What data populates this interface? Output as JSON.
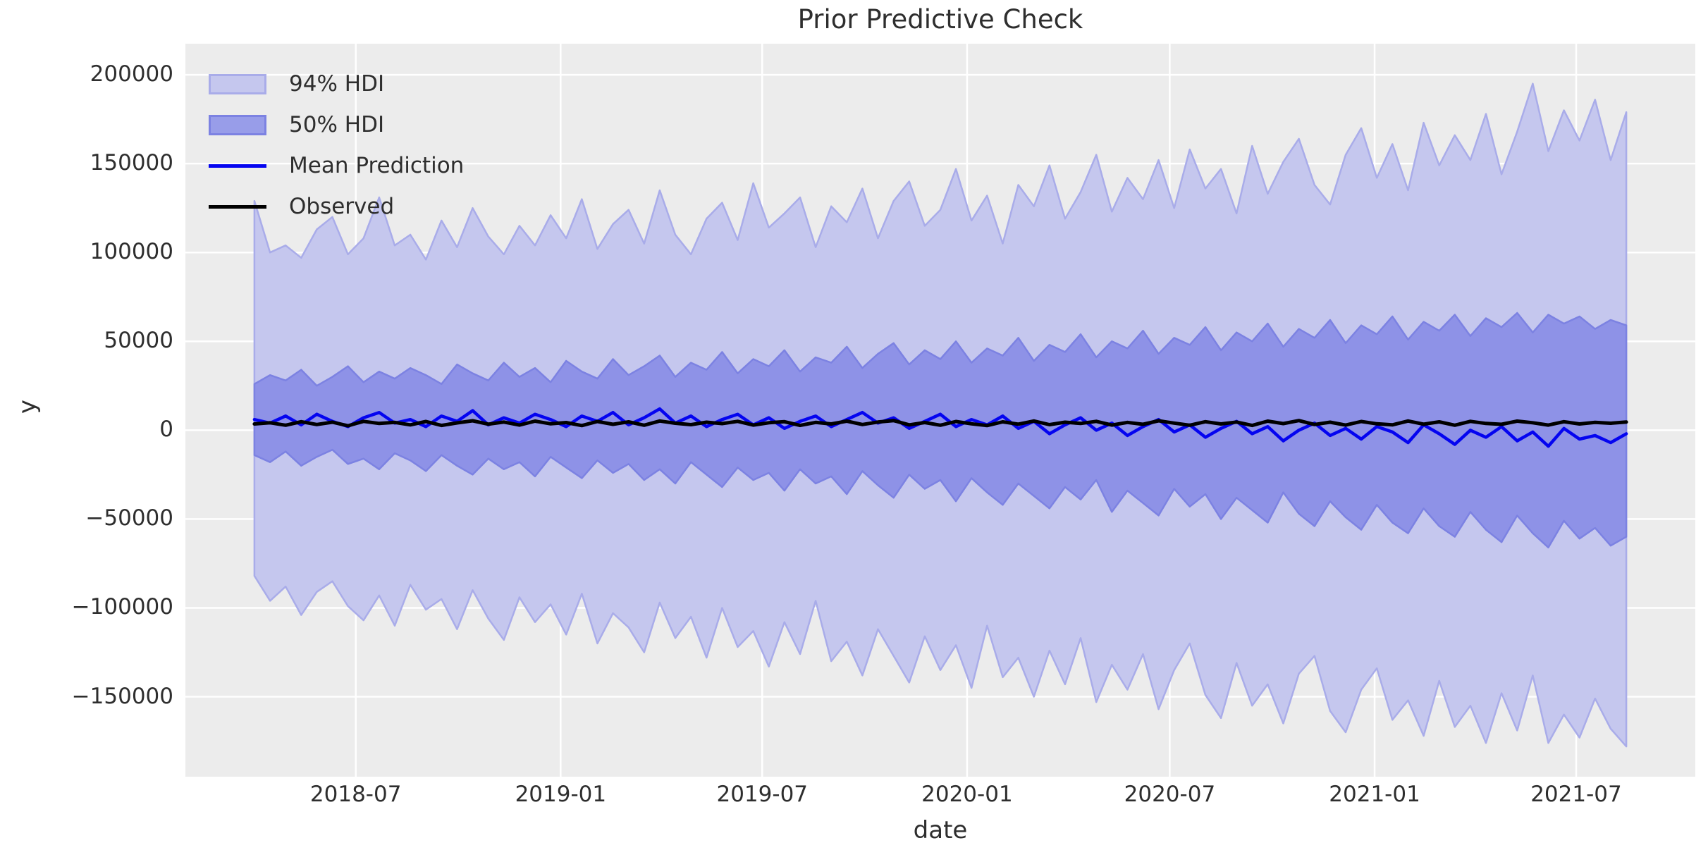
{
  "title": "Prior Predictive Check",
  "axes": {
    "xlabel": "date",
    "ylabel": "y",
    "y_ticks": [
      "200000",
      "150000",
      "100000",
      "50000",
      "0",
      "−50000",
      "−100000",
      "−150000"
    ],
    "x_ticks": [
      "2018-07",
      "2019-01",
      "2019-07",
      "2020-01",
      "2020-07",
      "2021-01",
      "2021-07"
    ]
  },
  "legend": {
    "items": [
      {
        "label": "94% HDI",
        "type": "patch",
        "fill": "#c5c7ee",
        "edge": "#a9ace9"
      },
      {
        "label": "50% HDI",
        "type": "patch",
        "fill": "#989de9",
        "edge": "#7c82e2"
      },
      {
        "label": "Mean Prediction",
        "type": "line",
        "color": "#0404f0"
      },
      {
        "label": "Observed",
        "type": "line",
        "color": "#000000"
      }
    ],
    "position": "upper left",
    "frame": false
  },
  "colors": {
    "plot_background": "#ececec",
    "grid": "#ffffff",
    "hdi94_fill": "#c5c7ee",
    "hdi94_edge": "#a9ace9",
    "hdi50_fill": "#8e92e7",
    "hdi50_edge": "#7c82e2",
    "mean_line": "#0404f0",
    "observed_line": "#000000",
    "text": "#2e2e2e"
  },
  "chart_data": {
    "type": "area",
    "title": "Prior Predictive Check",
    "xlabel": "date",
    "ylabel": "y",
    "grid": true,
    "legend_position": "upper left",
    "x_start_date": "2018-04-01",
    "x_interval_days": 14,
    "n_points": 89,
    "x_domain_days": [
      -62,
      1294
    ],
    "x_tick_days": [
      91,
      275,
      456,
      640,
      822,
      1006,
      1187
    ],
    "x_tick_labels": [
      "2018-07",
      "2019-01",
      "2019-07",
      "2020-01",
      "2020-07",
      "2021-01",
      "2021-07"
    ],
    "ylim": [
      -195000,
      217500
    ],
    "y_tick_values": [
      200000,
      150000,
      100000,
      50000,
      0,
      -50000,
      -100000,
      -150000
    ],
    "unit_scale": 1000,
    "series": [
      {
        "name": "94% HDI upper",
        "role": "hdi94_hi",
        "values_thousands": [
          129,
          100,
          104,
          97,
          113,
          120,
          99,
          108,
          131,
          104,
          110,
          96,
          118,
          103,
          125,
          109,
          99,
          115,
          104,
          121,
          108,
          130,
          102,
          116,
          124,
          105,
          135,
          110,
          99,
          119,
          128,
          107,
          139,
          114,
          122,
          131,
          103,
          126,
          117,
          136,
          108,
          129,
          140,
          115,
          124,
          147,
          118,
          132,
          105,
          138,
          126,
          149,
          119,
          134,
          155,
          123,
          142,
          130,
          152,
          125,
          158,
          136,
          147,
          122,
          160,
          133,
          151,
          164,
          138,
          127,
          155,
          170,
          142,
          161,
          135,
          173,
          149,
          166,
          152,
          178,
          144,
          168,
          195,
          157,
          180,
          163,
          186,
          152,
          179
        ]
      },
      {
        "name": "94% HDI lower",
        "role": "hdi94_lo",
        "values_thousands": [
          -82,
          -96,
          -88,
          -104,
          -91,
          -85,
          -99,
          -107,
          -93,
          -110,
          -87,
          -101,
          -95,
          -112,
          -90,
          -106,
          -118,
          -94,
          -108,
          -98,
          -115,
          -92,
          -120,
          -103,
          -111,
          -125,
          -97,
          -117,
          -105,
          -128,
          -100,
          -122,
          -113,
          -133,
          -108,
          -126,
          -96,
          -130,
          -119,
          -138,
          -112,
          -127,
          -142,
          -116,
          -135,
          -121,
          -145,
          -110,
          -139,
          -128,
          -150,
          -124,
          -143,
          -117,
          -153,
          -132,
          -146,
          -126,
          -157,
          -135,
          -120,
          -149,
          -162,
          -131,
          -155,
          -143,
          -165,
          -137,
          -127,
          -158,
          -170,
          -146,
          -134,
          -163,
          -152,
          -172,
          -141,
          -167,
          -155,
          -176,
          -148,
          -169,
          -138,
          -176,
          -160,
          -173,
          -151,
          -168,
          -178
        ]
      },
      {
        "name": "50% HDI upper",
        "role": "hdi50_hi",
        "values_thousands": [
          26,
          31,
          28,
          34,
          25,
          30,
          36,
          27,
          33,
          29,
          35,
          31,
          26,
          37,
          32,
          28,
          38,
          30,
          35,
          27,
          39,
          33,
          29,
          40,
          31,
          36,
          42,
          30,
          38,
          34,
          44,
          32,
          40,
          36,
          45,
          33,
          41,
          38,
          47,
          35,
          43,
          49,
          37,
          45,
          40,
          50,
          38,
          46,
          42,
          52,
          39,
          48,
          44,
          54,
          41,
          50,
          46,
          56,
          43,
          52,
          48,
          58,
          45,
          55,
          50,
          60,
          47,
          57,
          52,
          62,
          49,
          59,
          54,
          64,
          51,
          61,
          56,
          65,
          53,
          63,
          58,
          66,
          55,
          65,
          60,
          64,
          57,
          62,
          59
        ]
      },
      {
        "name": "50% HDI lower",
        "role": "hdi50_lo",
        "values_thousands": [
          -14,
          -18,
          -12,
          -20,
          -15,
          -11,
          -19,
          -16,
          -22,
          -13,
          -17,
          -23,
          -14,
          -20,
          -25,
          -16,
          -22,
          -18,
          -26,
          -15,
          -21,
          -27,
          -17,
          -24,
          -19,
          -28,
          -22,
          -30,
          -18,
          -25,
          -32,
          -21,
          -28,
          -24,
          -34,
          -22,
          -30,
          -26,
          -36,
          -23,
          -31,
          -38,
          -25,
          -33,
          -28,
          -40,
          -27,
          -35,
          -42,
          -30,
          -37,
          -44,
          -32,
          -39,
          -28,
          -46,
          -34,
          -41,
          -48,
          -33,
          -43,
          -36,
          -50,
          -38,
          -45,
          -52,
          -35,
          -47,
          -54,
          -40,
          -49,
          -56,
          -42,
          -52,
          -58,
          -44,
          -54,
          -60,
          -46,
          -56,
          -63,
          -48,
          -58,
          -66,
          -51,
          -61,
          -55,
          -65,
          -60
        ]
      },
      {
        "name": "Mean Prediction",
        "role": "mean",
        "values_thousands": [
          6,
          4,
          8,
          3,
          9,
          5,
          2,
          7,
          10,
          4,
          6,
          2,
          8,
          5,
          11,
          3,
          7,
          4,
          9,
          6,
          2,
          8,
          5,
          10,
          3,
          7,
          12,
          4,
          8,
          2,
          6,
          9,
          3,
          7,
          1,
          5,
          8,
          2,
          6,
          10,
          4,
          7,
          1,
          5,
          9,
          2,
          6,
          3,
          8,
          1,
          5,
          -2,
          3,
          7,
          0,
          4,
          -3,
          2,
          6,
          -1,
          3,
          -4,
          1,
          5,
          -2,
          2,
          -6,
          0,
          4,
          -3,
          1,
          -5,
          2,
          -1,
          -7,
          3,
          -2,
          -8,
          0,
          -4,
          2,
          -6,
          -1,
          -9,
          1,
          -5,
          -3,
          -7,
          -2
        ]
      },
      {
        "name": "Observed",
        "role": "observed",
        "values_thousands": [
          3.5,
          4.2,
          2.8,
          4.8,
          3.2,
          4.5,
          2.5,
          5.0,
          3.8,
          4.4,
          3.0,
          4.9,
          2.7,
          4.1,
          5.3,
          3.4,
          4.6,
          2.9,
          5.1,
          3.6,
          4.3,
          2.6,
          4.9,
          3.3,
          4.7,
          2.8,
          5.2,
          3.9,
          3.1,
          4.5,
          3.7,
          5.0,
          2.9,
          4.2,
          4.8,
          2.7,
          4.4,
          3.5,
          5.1,
          3.2,
          4.6,
          5.4,
          3.0,
          4.3,
          2.8,
          4.9,
          3.6,
          2.6,
          4.7,
          3.4,
          5.2,
          3.1,
          4.5,
          3.8,
          5.0,
          2.9,
          4.4,
          3.3,
          5.3,
          4.0,
          2.8,
          4.8,
          3.5,
          4.6,
          2.7,
          5.1,
          3.7,
          5.4,
          3.2,
          4.5,
          2.9,
          4.9,
          3.6,
          3.0,
          5.2,
          3.4,
          4.7,
          2.8,
          5.0,
          3.8,
          3.3,
          5.1,
          4.2,
          2.9,
          4.8,
          3.5,
          4.4,
          3.9,
          4.6
        ]
      }
    ]
  }
}
